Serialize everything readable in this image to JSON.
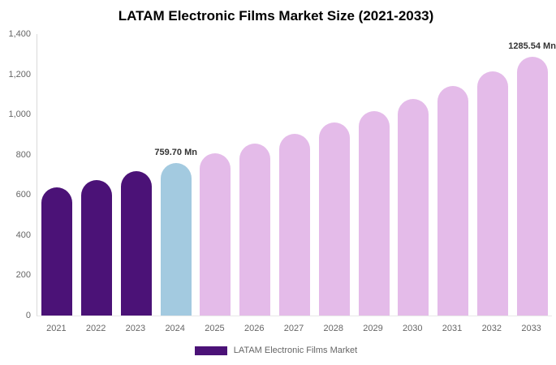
{
  "chart_data": {
    "type": "bar",
    "title": "LATAM Electronic Films Market Size (2021-2033)",
    "xlabel": "",
    "ylabel": "",
    "categories": [
      "2021",
      "2022",
      "2023",
      "2024",
      "2025",
      "2026",
      "2027",
      "2028",
      "2029",
      "2030",
      "2031",
      "2032",
      "2033"
    ],
    "series": [
      {
        "name": "LATAM Electronic Films Market",
        "values": [
          637.4,
          675.8,
          716.5,
          759.7,
          805.5,
          854.0,
          905.4,
          959.9,
          1017.7,
          1079.0,
          1144.0,
          1212.9,
          1285.54
        ]
      }
    ],
    "unit": "Mn",
    "point_labels": {
      "2024": "759.70 Mn",
      "2033": "1285.54 Mn"
    },
    "ylim": [
      0,
      1400
    ],
    "yticks": [
      "1,400",
      "1,200",
      "1,000",
      "800",
      "600",
      "400",
      "200",
      "0"
    ],
    "grid": false,
    "legend_position": "bottom",
    "bar_colors": [
      "#4B1277",
      "#4B1277",
      "#4B1277",
      "#A3CAE0",
      "#E4BBE9",
      "#E4BBE9",
      "#E4BBE9",
      "#E4BBE9",
      "#E4BBE9",
      "#E4BBE9",
      "#E4BBE9",
      "#E4BBE9",
      "#E4BBE9"
    ],
    "colors": {
      "historical_bar": "#4B1277",
      "current_year_bar": "#A3CAE0",
      "forecast_bar": "#E4BBE9",
      "legend_swatch": "#4B1277",
      "axis_line": "#d9d9d9",
      "axis_label": "#666666",
      "title_text": "#000000",
      "point_label_text": "#333333"
    }
  },
  "legend": {
    "label": "LATAM Electronic Films Market"
  }
}
